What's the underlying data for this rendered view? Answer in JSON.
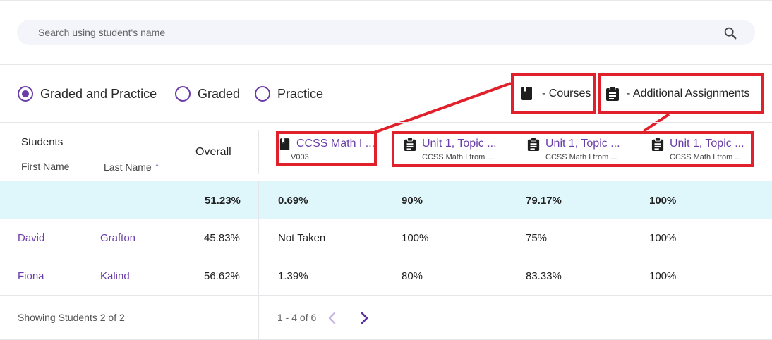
{
  "search": {
    "placeholder": "Search using student's name"
  },
  "filters": {
    "options": [
      {
        "label": "Graded and Practice",
        "checked": true
      },
      {
        "label": "Graded",
        "checked": false
      },
      {
        "label": "Practice",
        "checked": false
      }
    ]
  },
  "legend": {
    "courses_label": "- Courses",
    "additional_label": "- Additional Assignments"
  },
  "table": {
    "students_header": "Students",
    "first_name_header": "First Name",
    "last_name_header": "Last Name",
    "sort_arrow": "↑",
    "overall_header": "Overall",
    "columns": [
      {
        "icon": "book-icon",
        "title": "CCSS Math I ...",
        "subtitle": "V003"
      },
      {
        "icon": "clipboard-icon",
        "title": "Unit 1, Topic ...",
        "subtitle": "CCSS Math I from ..."
      },
      {
        "icon": "clipboard-icon",
        "title": "Unit 1, Topic ...",
        "subtitle": "CCSS Math I from ..."
      },
      {
        "icon": "clipboard-icon",
        "title": "Unit 1, Topic ...",
        "subtitle": "CCSS Math I from ..."
      }
    ],
    "summary": {
      "overall": "51.23%",
      "values": [
        "0.69%",
        "90%",
        "79.17%",
        "100%"
      ]
    },
    "rows": [
      {
        "first": "David",
        "last": "Grafton",
        "overall": "45.83%",
        "values": [
          "Not Taken",
          "100%",
          "75%",
          "100%"
        ]
      },
      {
        "first": "Fiona",
        "last": "Kalind",
        "overall": "56.62%",
        "values": [
          "1.39%",
          "80%",
          "83.33%",
          "100%"
        ]
      }
    ]
  },
  "footer": {
    "showing": "Showing Students 2 of 2",
    "range": "1 - 4 of 6"
  },
  "colors": {
    "accent": "#6a3da8",
    "highlight_row": "#dff6fb",
    "annotation": "#e0202a"
  }
}
